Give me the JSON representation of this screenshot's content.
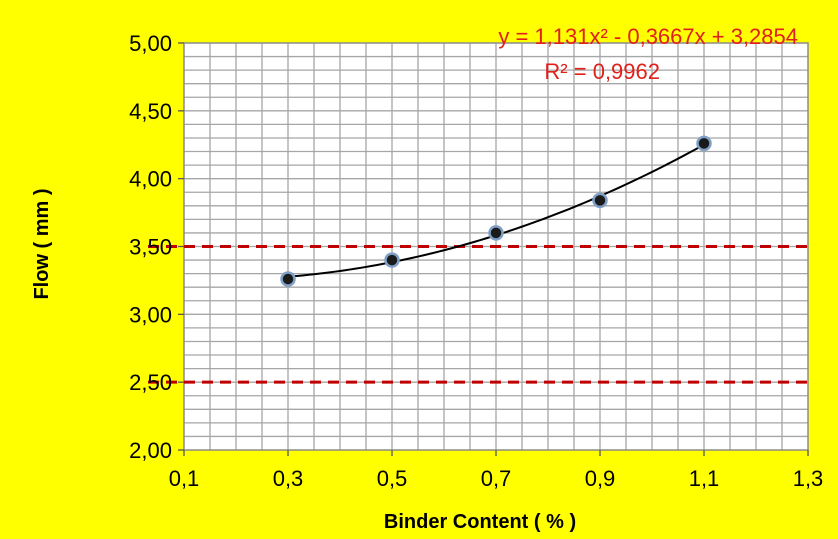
{
  "chart_data": {
    "type": "scatter",
    "xlabel": "Binder Content ( %  )",
    "ylabel": "Flow ( mm )",
    "xlim": [
      0.1,
      1.3
    ],
    "ylim": [
      2.0,
      5.0
    ],
    "xticks": [
      "0,1",
      "0,3",
      "0,5",
      "0,7",
      "0,9",
      "1,1",
      "1,3"
    ],
    "yticks": [
      "2,00",
      "2,50",
      "3,00",
      "3,50",
      "4,00",
      "4,50",
      "5,00"
    ],
    "x": [
      0.3,
      0.5,
      0.7,
      0.9,
      1.1
    ],
    "y": [
      3.26,
      3.4,
      3.6,
      3.84,
      4.26
    ],
    "trendline": {
      "type": "polynomial",
      "coefficients": [
        1.131,
        -0.3667,
        3.2854
      ],
      "equation": "y = 1,131x² - 0,3667x + 3,2854",
      "r_squared": "R² = 0,9962"
    },
    "reference_lines": [
      3.5,
      2.5
    ],
    "grid": true,
    "colors": {
      "background": "#ffff00",
      "plot_background": "#ffffff",
      "grid": "#a6a6a6",
      "reference": "#c00000",
      "marker": "#1a1a1a",
      "marker_edge": "#7f9fc6",
      "trendline": "#000000",
      "equation": "#e0201b"
    }
  }
}
